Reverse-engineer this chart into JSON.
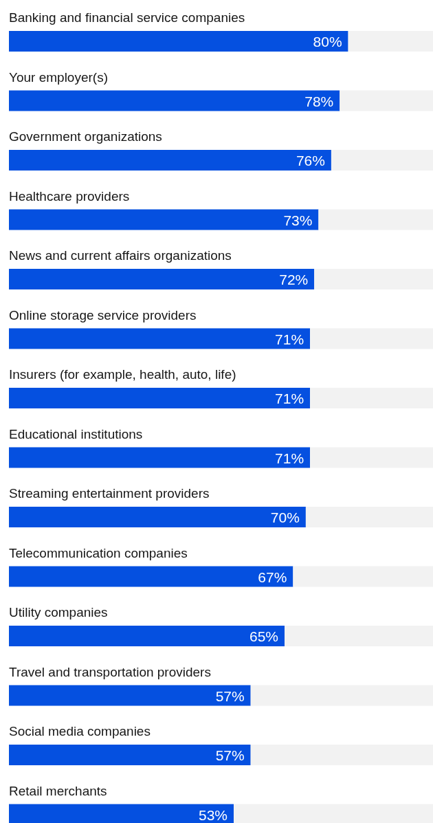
{
  "chart_data": {
    "type": "bar",
    "orientation": "horizontal",
    "stacked": true,
    "categories": [
      "Banking and financial service companies",
      "Your employer(s)",
      "Government organizations",
      "Healthcare providers",
      "News and current affairs organizations",
      "Online storage service providers",
      "Insurers (for example, health, auto, life)",
      "Educational institutions",
      "Streaming entertainment providers",
      "Telecommunication companies",
      "Utility companies",
      "Travel and transportation providers",
      "Social media companies",
      "Retail merchants"
    ],
    "series": [
      {
        "color": "#0550e0",
        "values": [
          80,
          78,
          76,
          73,
          72,
          71,
          71,
          71,
          70,
          67,
          65,
          57,
          57,
          53
        ],
        "value_labels": [
          "80%",
          "78%",
          "76%",
          "73%",
          "72%",
          "71%",
          "71%",
          "71%",
          "70%",
          "67%",
          "65%",
          "57%",
          "57%",
          "53%"
        ]
      },
      {
        "color": "#f2f2f2",
        "values": [
          20,
          22,
          24,
          27,
          28,
          29,
          29,
          29,
          30,
          33,
          35,
          43,
          43,
          47
        ]
      }
    ],
    "xlim": [
      0,
      100
    ]
  }
}
